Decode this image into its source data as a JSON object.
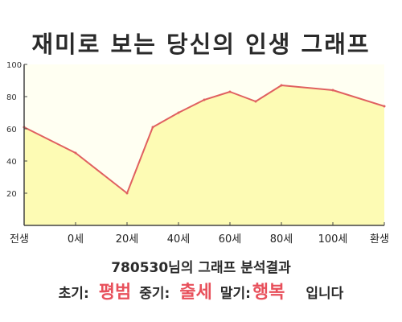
{
  "title": "재미로 보는 당신의 인생 그래프",
  "result_id": "780530님의 그래프 분석결과",
  "result": {
    "early_label": "초기:",
    "early_value": "평범",
    "middle_label": "중기:",
    "middle_value": "출세",
    "late_label": "말기:",
    "late_value": "행복",
    "ending": "입니다"
  },
  "colors": {
    "line": "#e06060",
    "fill": "#fdfbb4",
    "plot_bg": "#fffff2",
    "accent": "#e8505b"
  },
  "chart_data": {
    "type": "area",
    "x_ticks": [
      "전생",
      "0세",
      "20세",
      "40세",
      "60세",
      "80세",
      "100세",
      "환생"
    ],
    "y_ticks": [
      20,
      40,
      60,
      80,
      100
    ],
    "ylim": [
      0,
      100
    ],
    "grid": false,
    "x": [
      "전생",
      "0세",
      "20세",
      "30세",
      "40세",
      "50세",
      "60세",
      "70세",
      "80세",
      "100세",
      "환생"
    ],
    "values": [
      61,
      45,
      20,
      61,
      70,
      78,
      83,
      77,
      87,
      84,
      74
    ]
  }
}
